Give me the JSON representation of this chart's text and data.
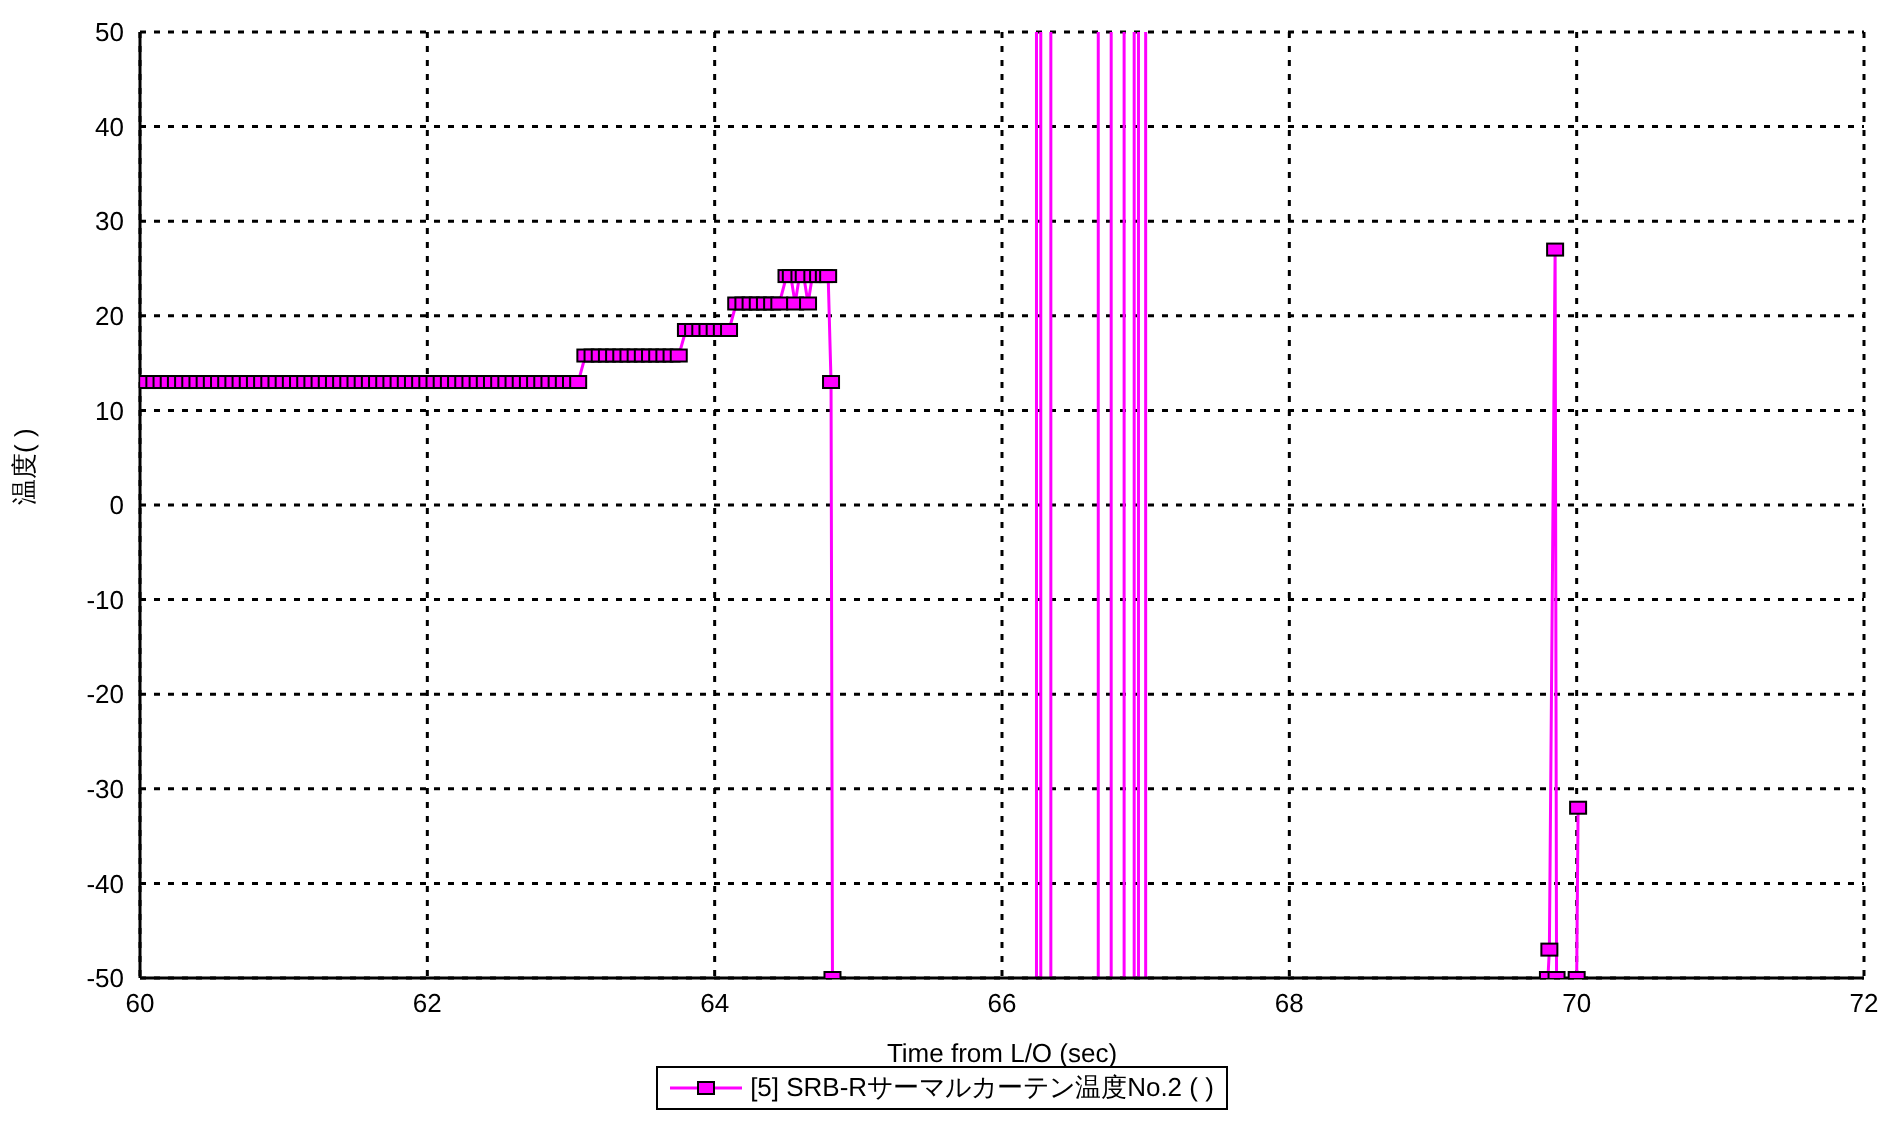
{
  "chart_data": {
    "type": "line",
    "xlabel": "Time from L/O (sec)",
    "ylabel": "温度( )",
    "xlim": [
      60,
      72
    ],
    "xticks": [
      60,
      62,
      64,
      66,
      68,
      70,
      72
    ],
    "ylim": [
      -50,
      50
    ],
    "yticks": [
      -50,
      -40,
      -30,
      -20,
      -10,
      0,
      10,
      20,
      30,
      40,
      50
    ],
    "grid": true,
    "legend": "bottom",
    "marker": "square",
    "line_style": "solid",
    "series": [
      {
        "name": "[5] SRB-Rサーマルカーテン温度No.2 ( )",
        "color": "#ff00ff",
        "x": [
          60.0,
          60.05,
          60.1,
          60.15,
          60.2,
          60.25,
          60.3,
          60.35,
          60.4,
          60.45,
          60.5,
          60.55,
          60.6,
          60.65,
          60.7,
          60.75,
          60.8,
          60.85,
          60.9,
          60.95,
          61.0,
          61.05,
          61.1,
          61.15,
          61.2,
          61.25,
          61.3,
          61.35,
          61.4,
          61.45,
          61.5,
          61.55,
          61.6,
          61.65,
          61.7,
          61.75,
          61.8,
          61.85,
          61.9,
          61.95,
          62.0,
          62.05,
          62.1,
          62.15,
          62.2,
          62.25,
          62.3,
          62.35,
          62.4,
          62.45,
          62.5,
          62.55,
          62.6,
          62.65,
          62.7,
          62.75,
          62.8,
          62.85,
          62.9,
          62.95,
          63.0,
          63.05,
          63.1,
          63.15,
          63.2,
          63.25,
          63.3,
          63.35,
          63.4,
          63.45,
          63.5,
          63.55,
          63.6,
          63.65,
          63.7,
          63.75,
          63.8,
          63.85,
          63.9,
          63.95,
          64.0,
          64.05,
          64.1,
          64.15,
          64.2,
          64.25,
          64.3,
          64.35,
          64.4,
          64.45,
          64.5,
          64.53,
          64.56,
          64.59,
          64.62,
          64.65,
          64.68,
          64.72,
          64.76,
          64.79,
          64.81,
          64.82
        ],
        "values": [
          13,
          13,
          13,
          13,
          13,
          13,
          13,
          13,
          13,
          13,
          13,
          13,
          13,
          13,
          13,
          13,
          13,
          13,
          13,
          13,
          13,
          13,
          13,
          13,
          13,
          13,
          13,
          13,
          13,
          13,
          13,
          13,
          13,
          13,
          13,
          13,
          13,
          13,
          13,
          13,
          13,
          13,
          13,
          13,
          13,
          13,
          13,
          13,
          13,
          13,
          13,
          13,
          13,
          13,
          13,
          13,
          13,
          13,
          13,
          13,
          13,
          13,
          15.8,
          15.8,
          15.8,
          15.8,
          15.8,
          15.8,
          15.8,
          15.8,
          15.8,
          15.8,
          15.8,
          15.8,
          15.8,
          15.8,
          18.5,
          18.5,
          18.5,
          18.5,
          18.5,
          18.5,
          18.5,
          21.3,
          21.3,
          21.3,
          21.3,
          21.3,
          21.3,
          21.3,
          24.2,
          24.2,
          21.3,
          24.2,
          24.2,
          21.3,
          24.2,
          24.2,
          24.2,
          24.2,
          13,
          -50
        ]
      },
      {
        "color": "#ff00ff",
        "marker": "none",
        "x": [
          66.24,
          66.24
        ],
        "values": [
          -50,
          50
        ]
      },
      {
        "color": "#ff00ff",
        "marker": "none",
        "x": [
          66.27,
          66.27
        ],
        "values": [
          -50,
          50
        ]
      },
      {
        "color": "#ff00ff",
        "marker": "none",
        "x": [
          66.34,
          66.34
        ],
        "values": [
          -50,
          50
        ]
      },
      {
        "color": "#ff00ff",
        "marker": "none",
        "x": [
          66.67,
          66.67
        ],
        "values": [
          -50,
          50
        ]
      },
      {
        "color": "#ff00ff",
        "marker": "none",
        "x": [
          66.76,
          66.76
        ],
        "values": [
          -50,
          50
        ]
      },
      {
        "color": "#ff00ff",
        "marker": "none",
        "x": [
          66.85,
          66.85
        ],
        "values": [
          -50,
          50
        ]
      },
      {
        "color": "#ff00ff",
        "marker": "none",
        "x": [
          66.92,
          66.92
        ],
        "values": [
          -50,
          50
        ]
      },
      {
        "color": "#ff00ff",
        "marker": "none",
        "x": [
          66.95,
          66.95
        ],
        "values": [
          -50,
          50
        ]
      },
      {
        "color": "#ff00ff",
        "marker": "none",
        "x": [
          67.0,
          67.0
        ],
        "values": [
          -50,
          50
        ]
      },
      {
        "color": "#ff00ff",
        "x": [
          69.8,
          69.81,
          69.85,
          69.86
        ],
        "values": [
          -50,
          -47,
          27,
          -50
        ]
      },
      {
        "color": "#ff00ff",
        "x": [
          70.0,
          70.01
        ],
        "values": [
          -50,
          -32
        ]
      }
    ]
  }
}
